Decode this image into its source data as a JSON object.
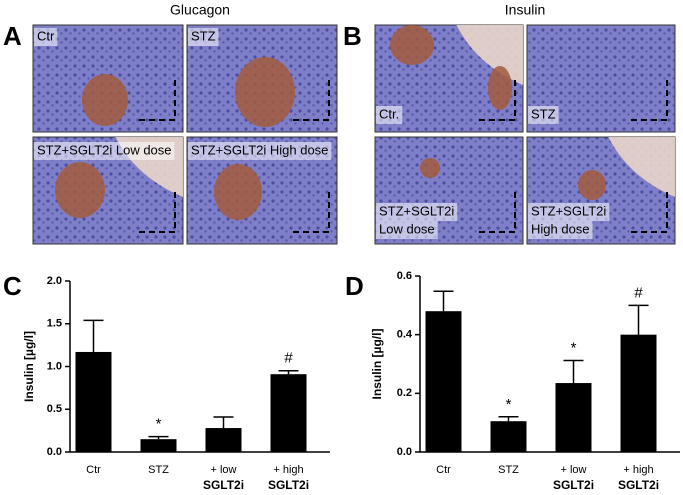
{
  "panels": [
    {
      "letter": "A",
      "title": "Glucagon",
      "images": [
        {
          "caption": [
            "Ctr"
          ]
        },
        {
          "caption": [
            "STZ"
          ]
        },
        {
          "caption": [
            "STZ+SGLT2i Low dose"
          ]
        },
        {
          "caption": [
            "STZ+SGLT2i High dose"
          ]
        }
      ]
    },
    {
      "letter": "B",
      "title": "Insulin",
      "images": [
        {
          "caption": [
            "Ctr."
          ]
        },
        {
          "caption": [
            "STZ"
          ]
        },
        {
          "caption": [
            "STZ+SGLT2i",
            "Low dose"
          ]
        },
        {
          "caption": [
            "STZ+SGLT2i",
            "High dose"
          ]
        }
      ]
    }
  ],
  "chart_data": [
    {
      "type": "bar",
      "letter": "C",
      "y_label": "Insulin [µg/l]",
      "categories": [
        "Ctr",
        "STZ",
        "+ low",
        "+ high"
      ],
      "category_sublabels": [
        null,
        null,
        "SGLT2i",
        "SGLT2i"
      ],
      "values": [
        1.17,
        0.15,
        0.28,
        0.91
      ],
      "errors": [
        0.37,
        0.03,
        0.13,
        0.04
      ],
      "annotations": [
        null,
        "*",
        null,
        "#"
      ],
      "color": "#000000",
      "ylim": [
        0,
        2
      ],
      "yticks": [
        {
          "value": 0,
          "label": "0.0"
        },
        0.5,
        {
          "value": 1,
          "label": "1.0"
        },
        1.5,
        {
          "value": 2,
          "label": "2.0"
        }
      ]
    },
    {
      "type": "bar",
      "letter": "D",
      "y_label": "Insulin [µg/l]",
      "categories": [
        "Ctr",
        "STZ",
        "+ low",
        "+ high"
      ],
      "category_sublabels": [
        null,
        null,
        "SGLT2i",
        "SGLT2i"
      ],
      "values": [
        0.48,
        0.105,
        0.235,
        0.4
      ],
      "errors": [
        0.068,
        0.015,
        0.077,
        0.1
      ],
      "annotations": [
        null,
        "*",
        "*",
        "#"
      ],
      "color": "#000000",
      "ylim": [
        0,
        0.6
      ],
      "yticks": [
        {
          "value": 0,
          "label": "0.0"
        },
        0.2,
        0.4,
        0.6
      ]
    }
  ]
}
